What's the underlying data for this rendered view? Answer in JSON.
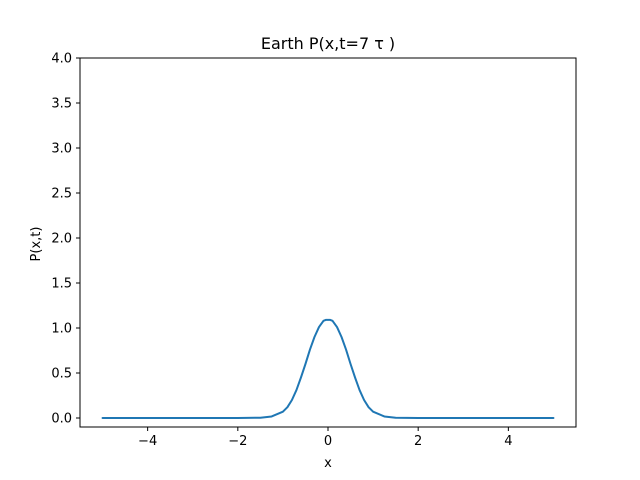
{
  "chart_data": {
    "type": "line",
    "title": "Earth P(x,t=7 τ )",
    "xlabel": "x",
    "ylabel": "P(x,t)",
    "xlim": [
      -5.5,
      5.5
    ],
    "ylim": [
      -0.1,
      4.0
    ],
    "xticks": [
      -4,
      -2,
      0,
      2,
      4
    ],
    "xtick_labels": [
      "−4",
      "−2",
      "0",
      "2",
      "4"
    ],
    "yticks": [
      0.0,
      0.5,
      1.0,
      1.5,
      2.0,
      2.5,
      3.0,
      3.5,
      4.0
    ],
    "ytick_labels": [
      "0.0",
      "0.5",
      "1.0",
      "1.5",
      "2.0",
      "2.5",
      "3.0",
      "3.5",
      "4.0"
    ],
    "grid": false,
    "series": [
      {
        "color": "#1f77b4",
        "x": [
          -5.0,
          -2.0,
          -1.5,
          -1.25,
          -1.0,
          -0.9,
          -0.8,
          -0.7,
          -0.6,
          -0.5,
          -0.4,
          -0.3,
          -0.2,
          -0.1,
          -0.05,
          0.0,
          0.05,
          0.1,
          0.2,
          0.3,
          0.4,
          0.5,
          0.6,
          0.7,
          0.8,
          0.9,
          1.0,
          1.25,
          1.5,
          2.0,
          5.0
        ],
        "y": [
          0.0,
          0.0,
          0.003,
          0.017,
          0.07,
          0.12,
          0.2,
          0.31,
          0.45,
          0.6,
          0.76,
          0.9,
          1.01,
          1.08,
          1.09,
          1.09,
          1.09,
          1.08,
          1.01,
          0.9,
          0.76,
          0.6,
          0.45,
          0.31,
          0.2,
          0.12,
          0.07,
          0.017,
          0.003,
          0.0,
          0.0
        ]
      }
    ]
  }
}
